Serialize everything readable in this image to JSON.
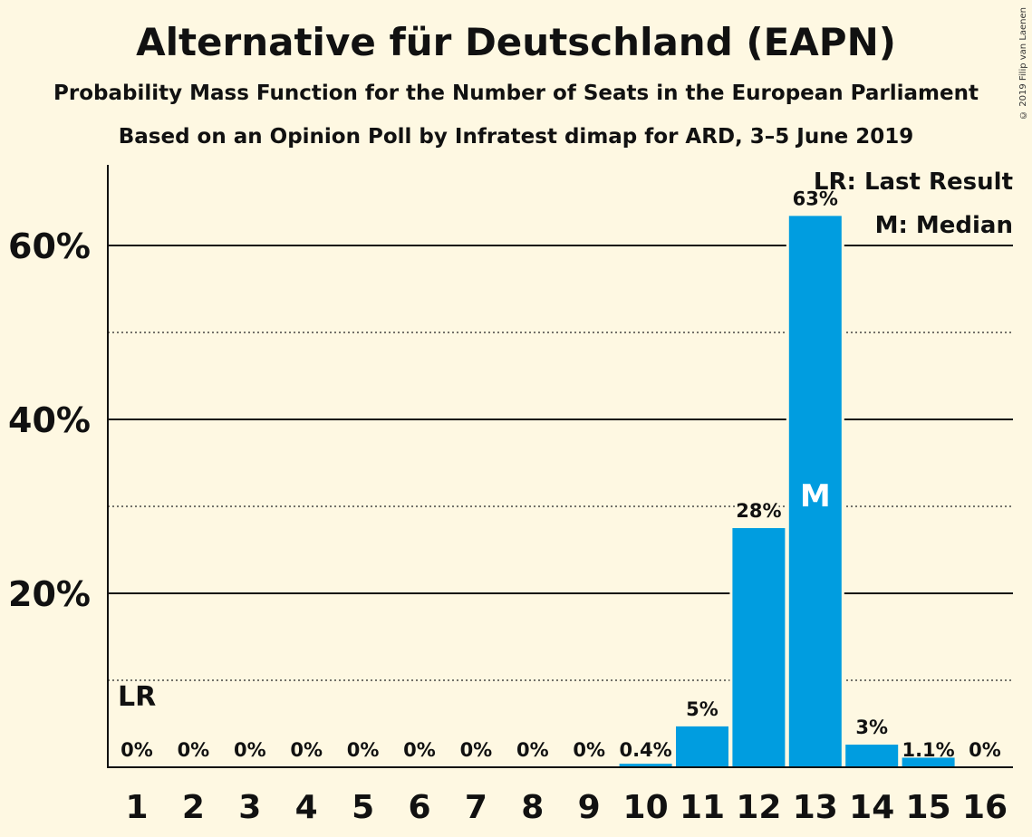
{
  "page": {
    "title": "Alternative für Deutschland (EAPN)",
    "subtitle1": "Probability Mass Function for the Number of Seats in the European Parliament",
    "subtitle2": "Based on an Opinion Poll by Infratest dimap for ARD, 3–5 June 2019",
    "copyright": "© 2019 Filip van Laenen"
  },
  "colors": {
    "bar": "#009de0",
    "background": "#fef8e2",
    "text": "#111111",
    "median_label": "#ffffff"
  },
  "chart_data": {
    "type": "bar",
    "title": "Alternative für Deutschland (EAPN)",
    "xlabel": "",
    "ylabel": "",
    "categories": [
      "1",
      "2",
      "3",
      "4",
      "5",
      "6",
      "7",
      "8",
      "9",
      "10",
      "11",
      "12",
      "13",
      "14",
      "15",
      "16"
    ],
    "values": [
      0,
      0,
      0,
      0,
      0,
      0,
      0,
      0,
      0,
      0.4,
      4.7,
      27.5,
      63.4,
      2.6,
      1.1,
      0
    ],
    "data_labels": [
      "0%",
      "0%",
      "0%",
      "0%",
      "0%",
      "0%",
      "0%",
      "0%",
      "0%",
      "0.4%",
      "5%",
      "28%",
      "63%",
      "3%",
      "1.1%",
      "0%"
    ],
    "ylim": [
      0,
      70
    ],
    "y_ticks": [
      {
        "value": 20,
        "label": "20%"
      },
      {
        "value": 40,
        "label": "40%"
      },
      {
        "value": 60,
        "label": "60%"
      }
    ],
    "minor_gridlines": [
      10,
      30,
      50
    ],
    "grid": true,
    "last_result_seat": "1",
    "last_result_marker": "LR",
    "median_seat": "13",
    "median_marker": "M",
    "legend": [
      "LR: Last Result",
      "M: Median"
    ],
    "legend_position": "top-right"
  }
}
